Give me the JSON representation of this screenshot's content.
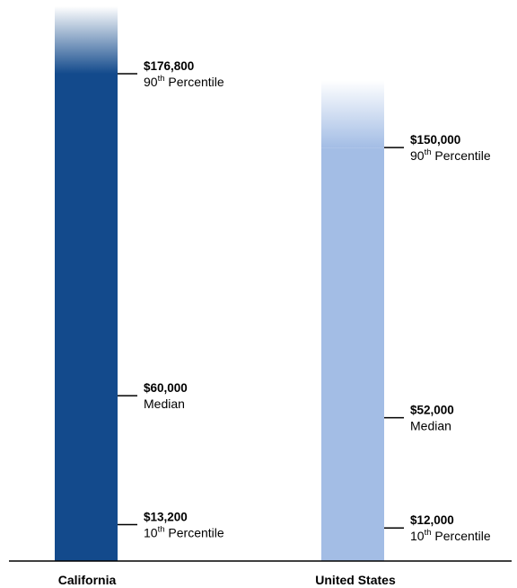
{
  "chart_data": {
    "type": "bar",
    "title": "",
    "xlabel": "",
    "ylabel": "",
    "ylim": [
      0,
      200000
    ],
    "categories": [
      "California",
      "United States"
    ],
    "colors": {
      "California": "#134a8c",
      "United States": "#a3bde5"
    },
    "series": [
      {
        "category": "California",
        "markers": [
          {
            "value": 176800,
            "value_label": "$176,800",
            "name": "90",
            "sup": "th",
            "suffix": " Percentile"
          },
          {
            "value": 60000,
            "value_label": "$60,000",
            "name": "Median",
            "sup": "",
            "suffix": ""
          },
          {
            "value": 13200,
            "value_label": "$13,200",
            "name": "10",
            "sup": "th",
            "suffix": " Percentile"
          }
        ]
      },
      {
        "category": "United States",
        "markers": [
          {
            "value": 150000,
            "value_label": "$150,000",
            "name": "90",
            "sup": "th",
            "suffix": " Percentile"
          },
          {
            "value": 52000,
            "value_label": "$52,000",
            "name": "Median",
            "sup": "",
            "suffix": ""
          },
          {
            "value": 12000,
            "value_label": "$12,000",
            "name": "10",
            "sup": "th",
            "suffix": " Percentile"
          }
        ]
      }
    ]
  }
}
